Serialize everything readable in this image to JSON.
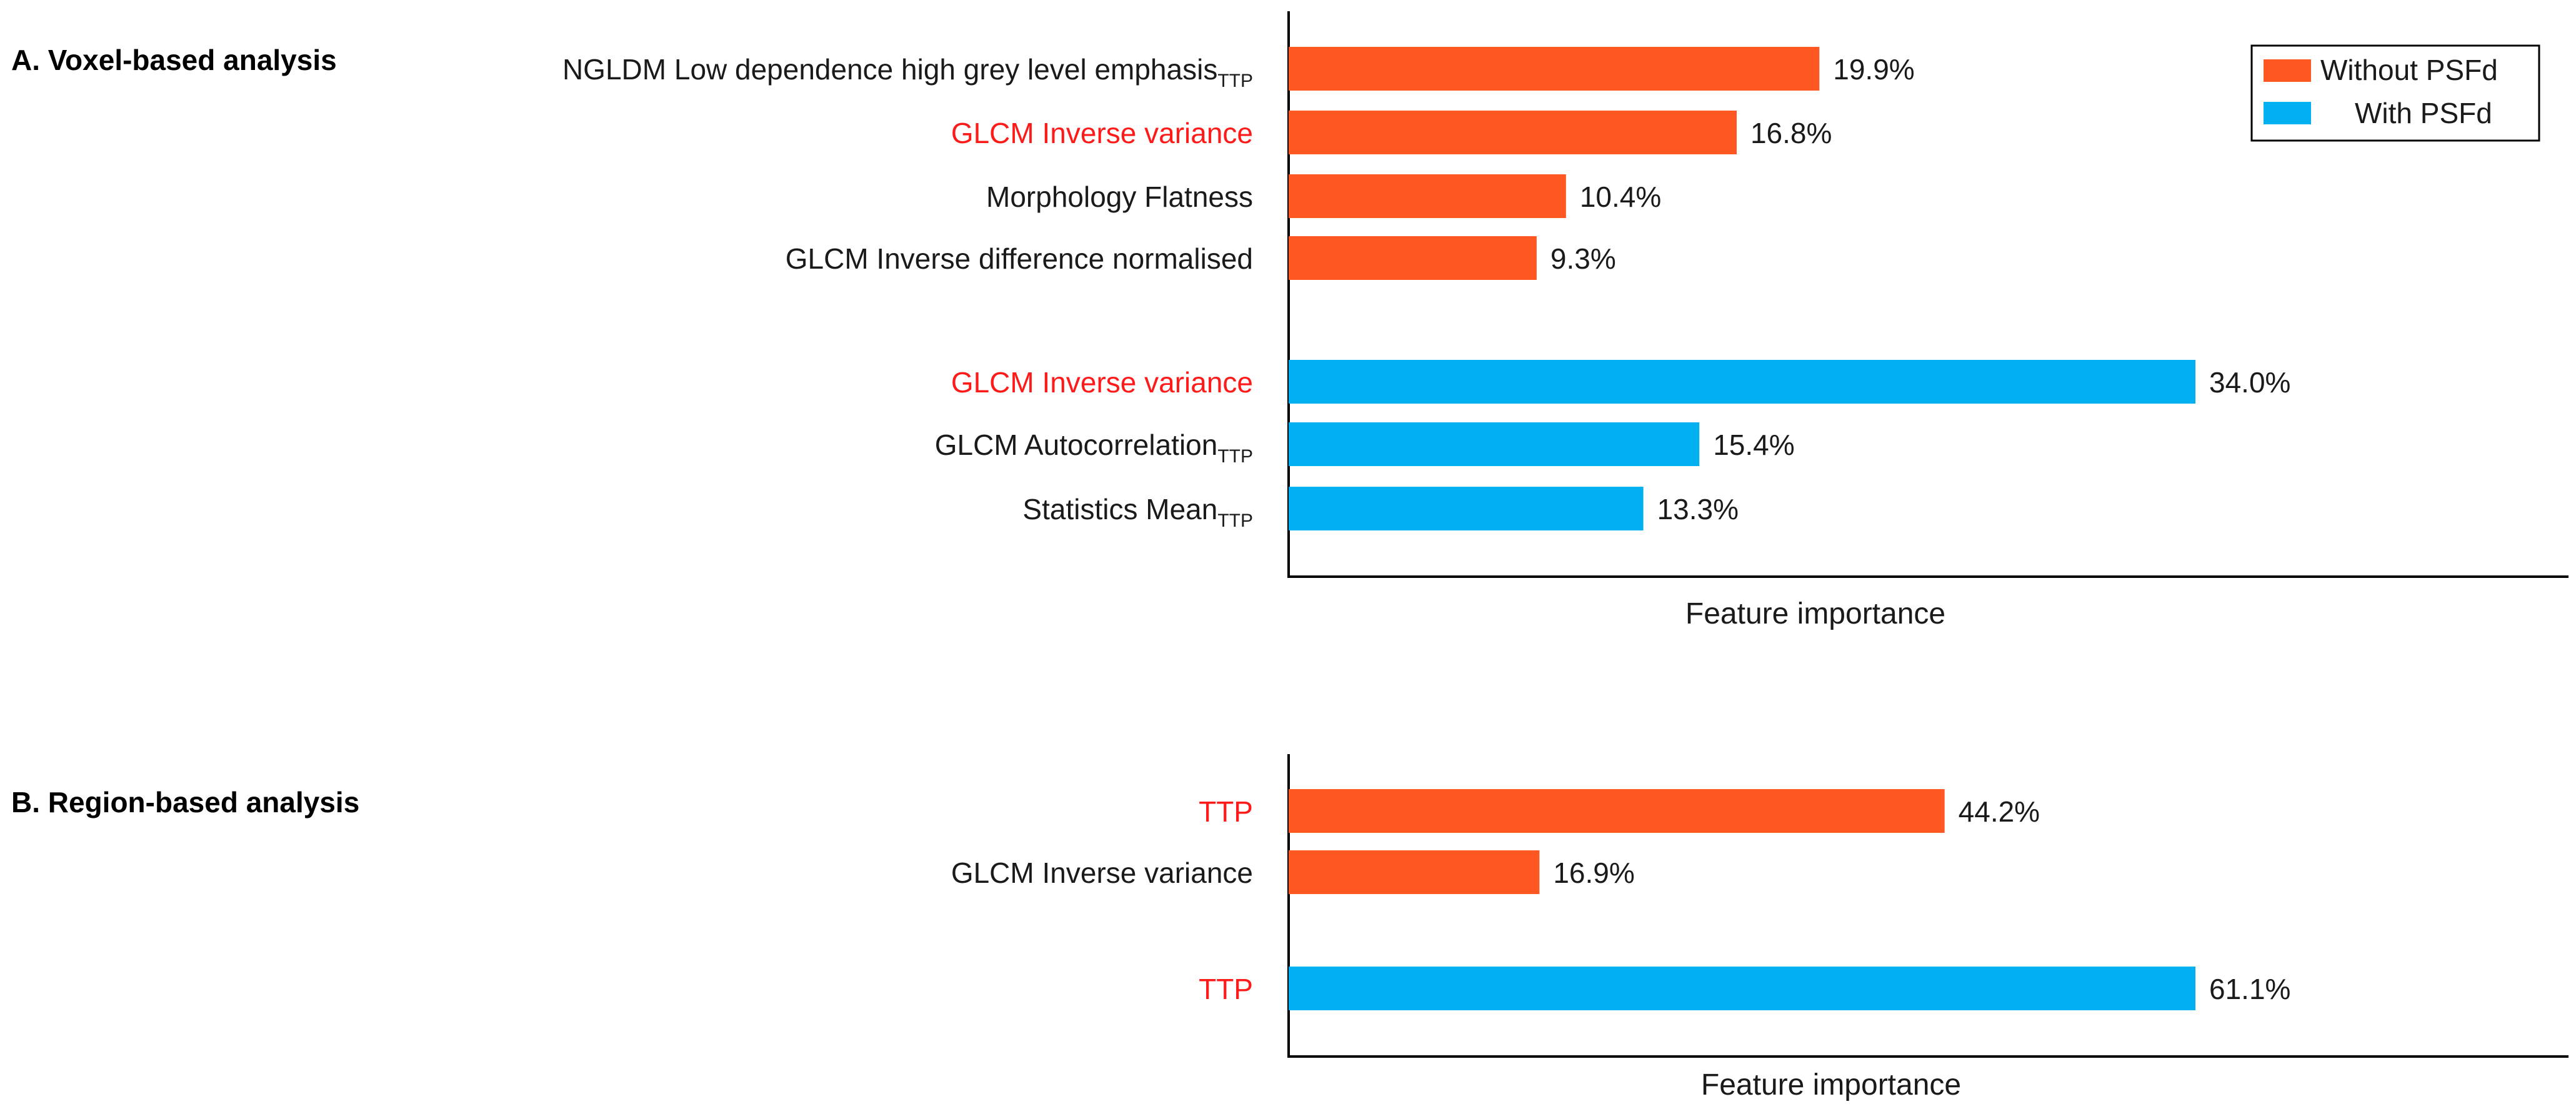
{
  "colors": {
    "without": "#FF5722",
    "with": "#00B0F0",
    "highlight": "#FF1A1A",
    "text": "#1a1a1a",
    "axis": "#000000"
  },
  "legend": {
    "without_label": "Without PSFd",
    "with_label": "With PSFd"
  },
  "chart_data": [
    {
      "type": "bar",
      "orientation": "horizontal",
      "panel_title": "A. Voxel-based analysis",
      "xlabel": "Feature importance",
      "xlim": [
        0,
        44
      ],
      "value_format": "percent",
      "series": [
        {
          "name": "Without PSFd",
          "color_key": "without",
          "bars": [
            {
              "label": "NGLDM Low dependence high grey level emphasis",
              "subscript": "TTP",
              "value": 19.9,
              "value_label": "19.9%",
              "highlight": false
            },
            {
              "label": "GLCM Inverse variance",
              "subscript": "",
              "value": 16.8,
              "value_label": "16.8%",
              "highlight": true
            },
            {
              "label": "Morphology  Flatness",
              "subscript": "",
              "value": 10.4,
              "value_label": "10.4%",
              "highlight": false
            },
            {
              "label": "GLCM Inverse  difference normalised",
              "subscript": "",
              "value": 9.3,
              "value_label": "9.3%",
              "highlight": false
            }
          ]
        },
        {
          "name": "With PSFd",
          "color_key": "with",
          "bars": [
            {
              "label": "GLCM Inverse  variance",
              "subscript": "",
              "value": 34.0,
              "value_label": "34.0%",
              "highlight": true
            },
            {
              "label": "GLCM Autocorrelation",
              "subscript": "TTP",
              "value": 15.4,
              "value_label": "15.4%",
              "highlight": false
            },
            {
              "label": "Statistics Mean",
              "subscript": "TTP",
              "value": 13.3,
              "value_label": "13.3%",
              "highlight": false
            }
          ]
        }
      ]
    },
    {
      "type": "bar",
      "orientation": "horizontal",
      "panel_title": "B. Region-based analysis",
      "xlabel": "Feature importance",
      "xlim": [
        0,
        80
      ],
      "value_format": "percent",
      "series": [
        {
          "name": "Without PSFd",
          "color_key": "without",
          "bars": [
            {
              "label": "TTP",
              "subscript": "",
              "value": 44.2,
              "value_label": "44.2%",
              "highlight": true
            },
            {
              "label": "GLCM Inverse  variance",
              "subscript": "",
              "value": 16.9,
              "value_label": "16.9%",
              "highlight": false
            }
          ]
        },
        {
          "name": "With PSFd",
          "color_key": "with",
          "bars": [
            {
              "label": "TTP",
              "subscript": "",
              "value": 61.1,
              "value_label": "61.1%",
              "highlight": true
            }
          ]
        }
      ]
    }
  ]
}
